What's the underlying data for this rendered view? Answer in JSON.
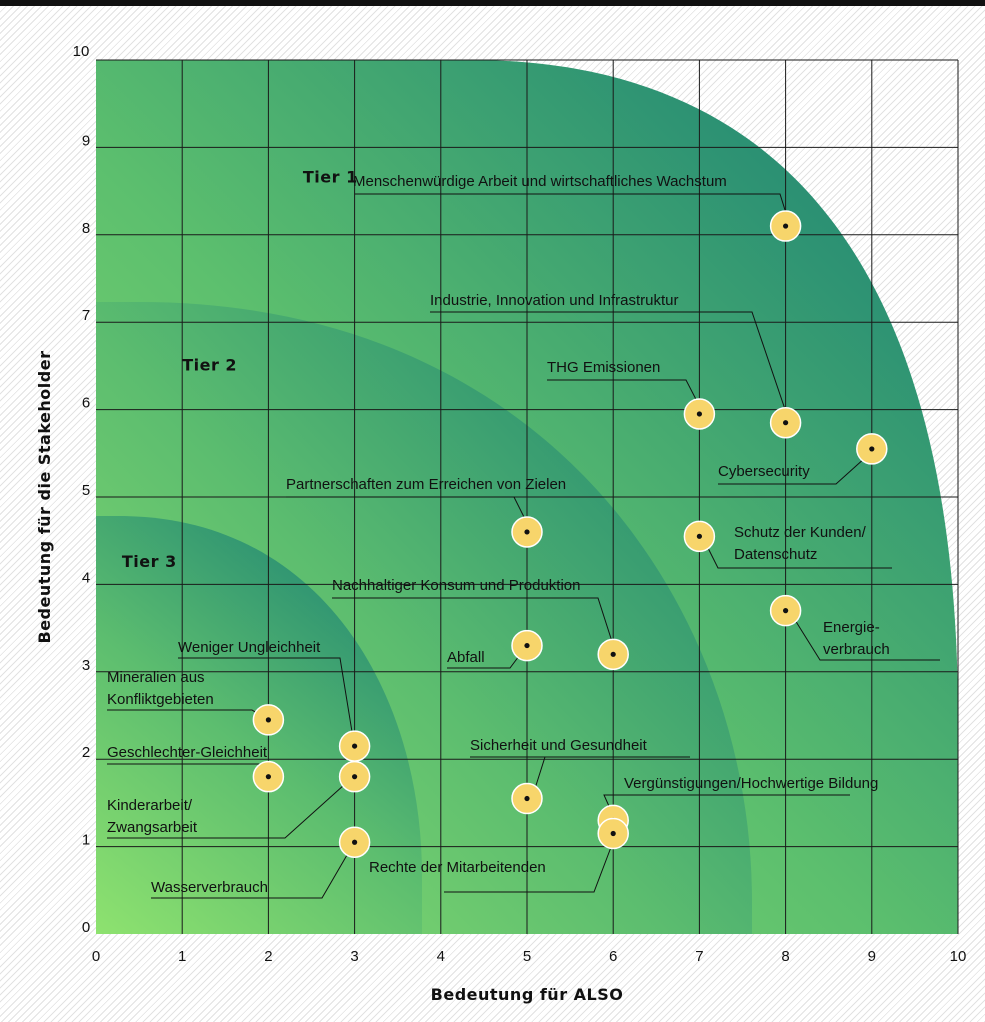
{
  "chart_data": {
    "type": "scatter",
    "title": "",
    "xlabel": "Bedeutung für ALSO",
    "ylabel": "Bedeutung für die Stakeholder",
    "xlim": [
      0,
      10
    ],
    "ylim": [
      0,
      10
    ],
    "x_ticks": [
      "0",
      "1",
      "2",
      "3",
      "4",
      "5",
      "6",
      "7",
      "8",
      "9",
      "10"
    ],
    "y_ticks": [
      "0",
      "1",
      "2",
      "3",
      "4",
      "5",
      "6",
      "7",
      "8",
      "9",
      "10"
    ],
    "grid": true,
    "regions": [
      {
        "label": "Tier 1",
        "label_x": 2.4,
        "label_y": 8.6
      },
      {
        "label": "Tier 2",
        "label_x": 1.0,
        "label_y": 6.45
      },
      {
        "label": "Tier 3",
        "label_x": 0.3,
        "label_y": 4.2
      }
    ],
    "points": [
      {
        "label": "Menschenwürdige Arbeit und wirtschaftliches Wachstum",
        "lines": [
          "Menschenwürdige Arbeit und wirtschaftliches Wachstum"
        ],
        "x": 8.0,
        "y": 8.1
      },
      {
        "label": "Industrie, Innovation und Infrastruktur",
        "lines": [
          "Industrie, Innovation und Infrastruktur"
        ],
        "x": 8.0,
        "y": 5.85
      },
      {
        "label": "THG Emissionen",
        "lines": [
          "THG Emissionen"
        ],
        "x": 7.0,
        "y": 5.95
      },
      {
        "label": "Cybersecurity",
        "lines": [
          "Cybersecurity"
        ],
        "x": 9.0,
        "y": 5.55
      },
      {
        "label": "Partnerschaften zum Erreichen von Zielen",
        "lines": [
          "Partnerschaften zum Erreichen von Zielen"
        ],
        "x": 5.0,
        "y": 4.6
      },
      {
        "label": "Schutz der Kunden/ Datenschutz",
        "lines": [
          "Schutz der Kunden/",
          "Datenschutz"
        ],
        "x": 7.0,
        "y": 4.55
      },
      {
        "label": "Nachhaltiger Konsum und Produktion",
        "lines": [
          "Nachhaltiger Konsum und Produktion"
        ],
        "x": 6.0,
        "y": 3.2
      },
      {
        "label": "Energieverbrauch",
        "lines": [
          "Energie-",
          "verbrauch"
        ],
        "x": 8.0,
        "y": 3.7
      },
      {
        "label": "Abfall",
        "lines": [
          "Abfall"
        ],
        "x": 5.0,
        "y": 3.3
      },
      {
        "label": "Weniger Ungleichheit",
        "lines": [
          "Weniger Ungleichheit"
        ],
        "x": 3.0,
        "y": 2.15
      },
      {
        "label": "Mineralien aus Konfliktgebieten",
        "lines": [
          "Mineralien aus",
          "Konfliktgebieten"
        ],
        "x": 2.0,
        "y": 2.45
      },
      {
        "label": "Geschlechter-Gleichheit",
        "lines": [
          "Geschlechter-Gleichheit"
        ],
        "x": 2.0,
        "y": 1.8
      },
      {
        "label": "Kinderarbeit/ Zwangsarbeit",
        "lines": [
          "Kinderarbeit/",
          "Zwangsarbeit"
        ],
        "x": 3.0,
        "y": 1.8
      },
      {
        "label": "Wasserverbrauch",
        "lines": [
          "Wasserverbrauch"
        ],
        "x": 3.0,
        "y": 1.05
      },
      {
        "label": "Sicherheit und Gesundheit",
        "lines": [
          "Sicherheit und Gesundheit"
        ],
        "x": 5.0,
        "y": 1.55
      },
      {
        "label": "Vergünstigungen/Hochwertige Bildung",
        "lines": [
          "Vergünstigungen/Hochwertige Bildung"
        ],
        "x": 6.0,
        "y": 1.3
      },
      {
        "label": "Rechte der Mitarbeitenden",
        "lines": [
          "Rechte der Mitarbeitenden"
        ],
        "x": 6.0,
        "y": 1.15
      }
    ],
    "colors": {
      "zone_light": "#8ee26f",
      "zone_dark": "#1a7f74",
      "point_fill": "#f7d56b",
      "point_edge": "#ffffff"
    }
  }
}
